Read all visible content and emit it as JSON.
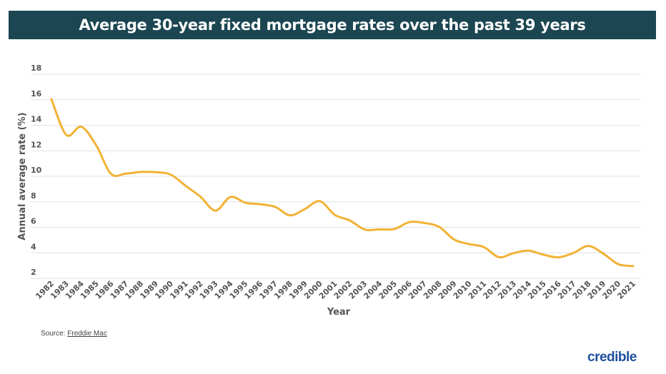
{
  "chart_data": {
    "type": "line",
    "title": "Average 30-year fixed mortgage rates over the past 39 years",
    "xlabel": "Year",
    "ylabel": "Annual average rate (%)",
    "ylim": [
      2,
      18
    ],
    "yticks": [
      2,
      4,
      6,
      8,
      10,
      12,
      14,
      16,
      18
    ],
    "grid": true,
    "line_color": "#f2b234",
    "x": [
      "1982",
      "1983",
      "1984",
      "1985",
      "1986",
      "1987",
      "1988",
      "1989",
      "1990",
      "1991",
      "1992",
      "1993",
      "1994",
      "1995",
      "1996",
      "1997",
      "1998",
      "1999",
      "2000",
      "2001",
      "2002",
      "2003",
      "2004",
      "2005",
      "2006",
      "2007",
      "2008",
      "2009",
      "2010",
      "2011",
      "2012",
      "2013",
      "2014",
      "2015",
      "2016",
      "2017",
      "2018",
      "2019",
      "2020",
      "2021"
    ],
    "values": [
      16.04,
      13.24,
      13.88,
      12.43,
      10.19,
      10.21,
      10.34,
      10.32,
      10.13,
      9.25,
      8.39,
      7.31,
      8.38,
      7.93,
      7.81,
      7.6,
      6.94,
      7.44,
      8.05,
      6.97,
      6.54,
      5.83,
      5.84,
      5.87,
      6.41,
      6.34,
      6.03,
      5.04,
      4.69,
      4.45,
      3.66,
      3.98,
      4.17,
      3.85,
      3.65,
      3.99,
      4.54,
      3.94,
      3.11,
      2.96
    ]
  },
  "source": {
    "prefix": "Source: ",
    "link": "Freddie Mac"
  },
  "logo": "credible",
  "colors": {
    "title_band": "#1b4652",
    "line": "#f2b234",
    "logo": "#1d4f9c"
  }
}
